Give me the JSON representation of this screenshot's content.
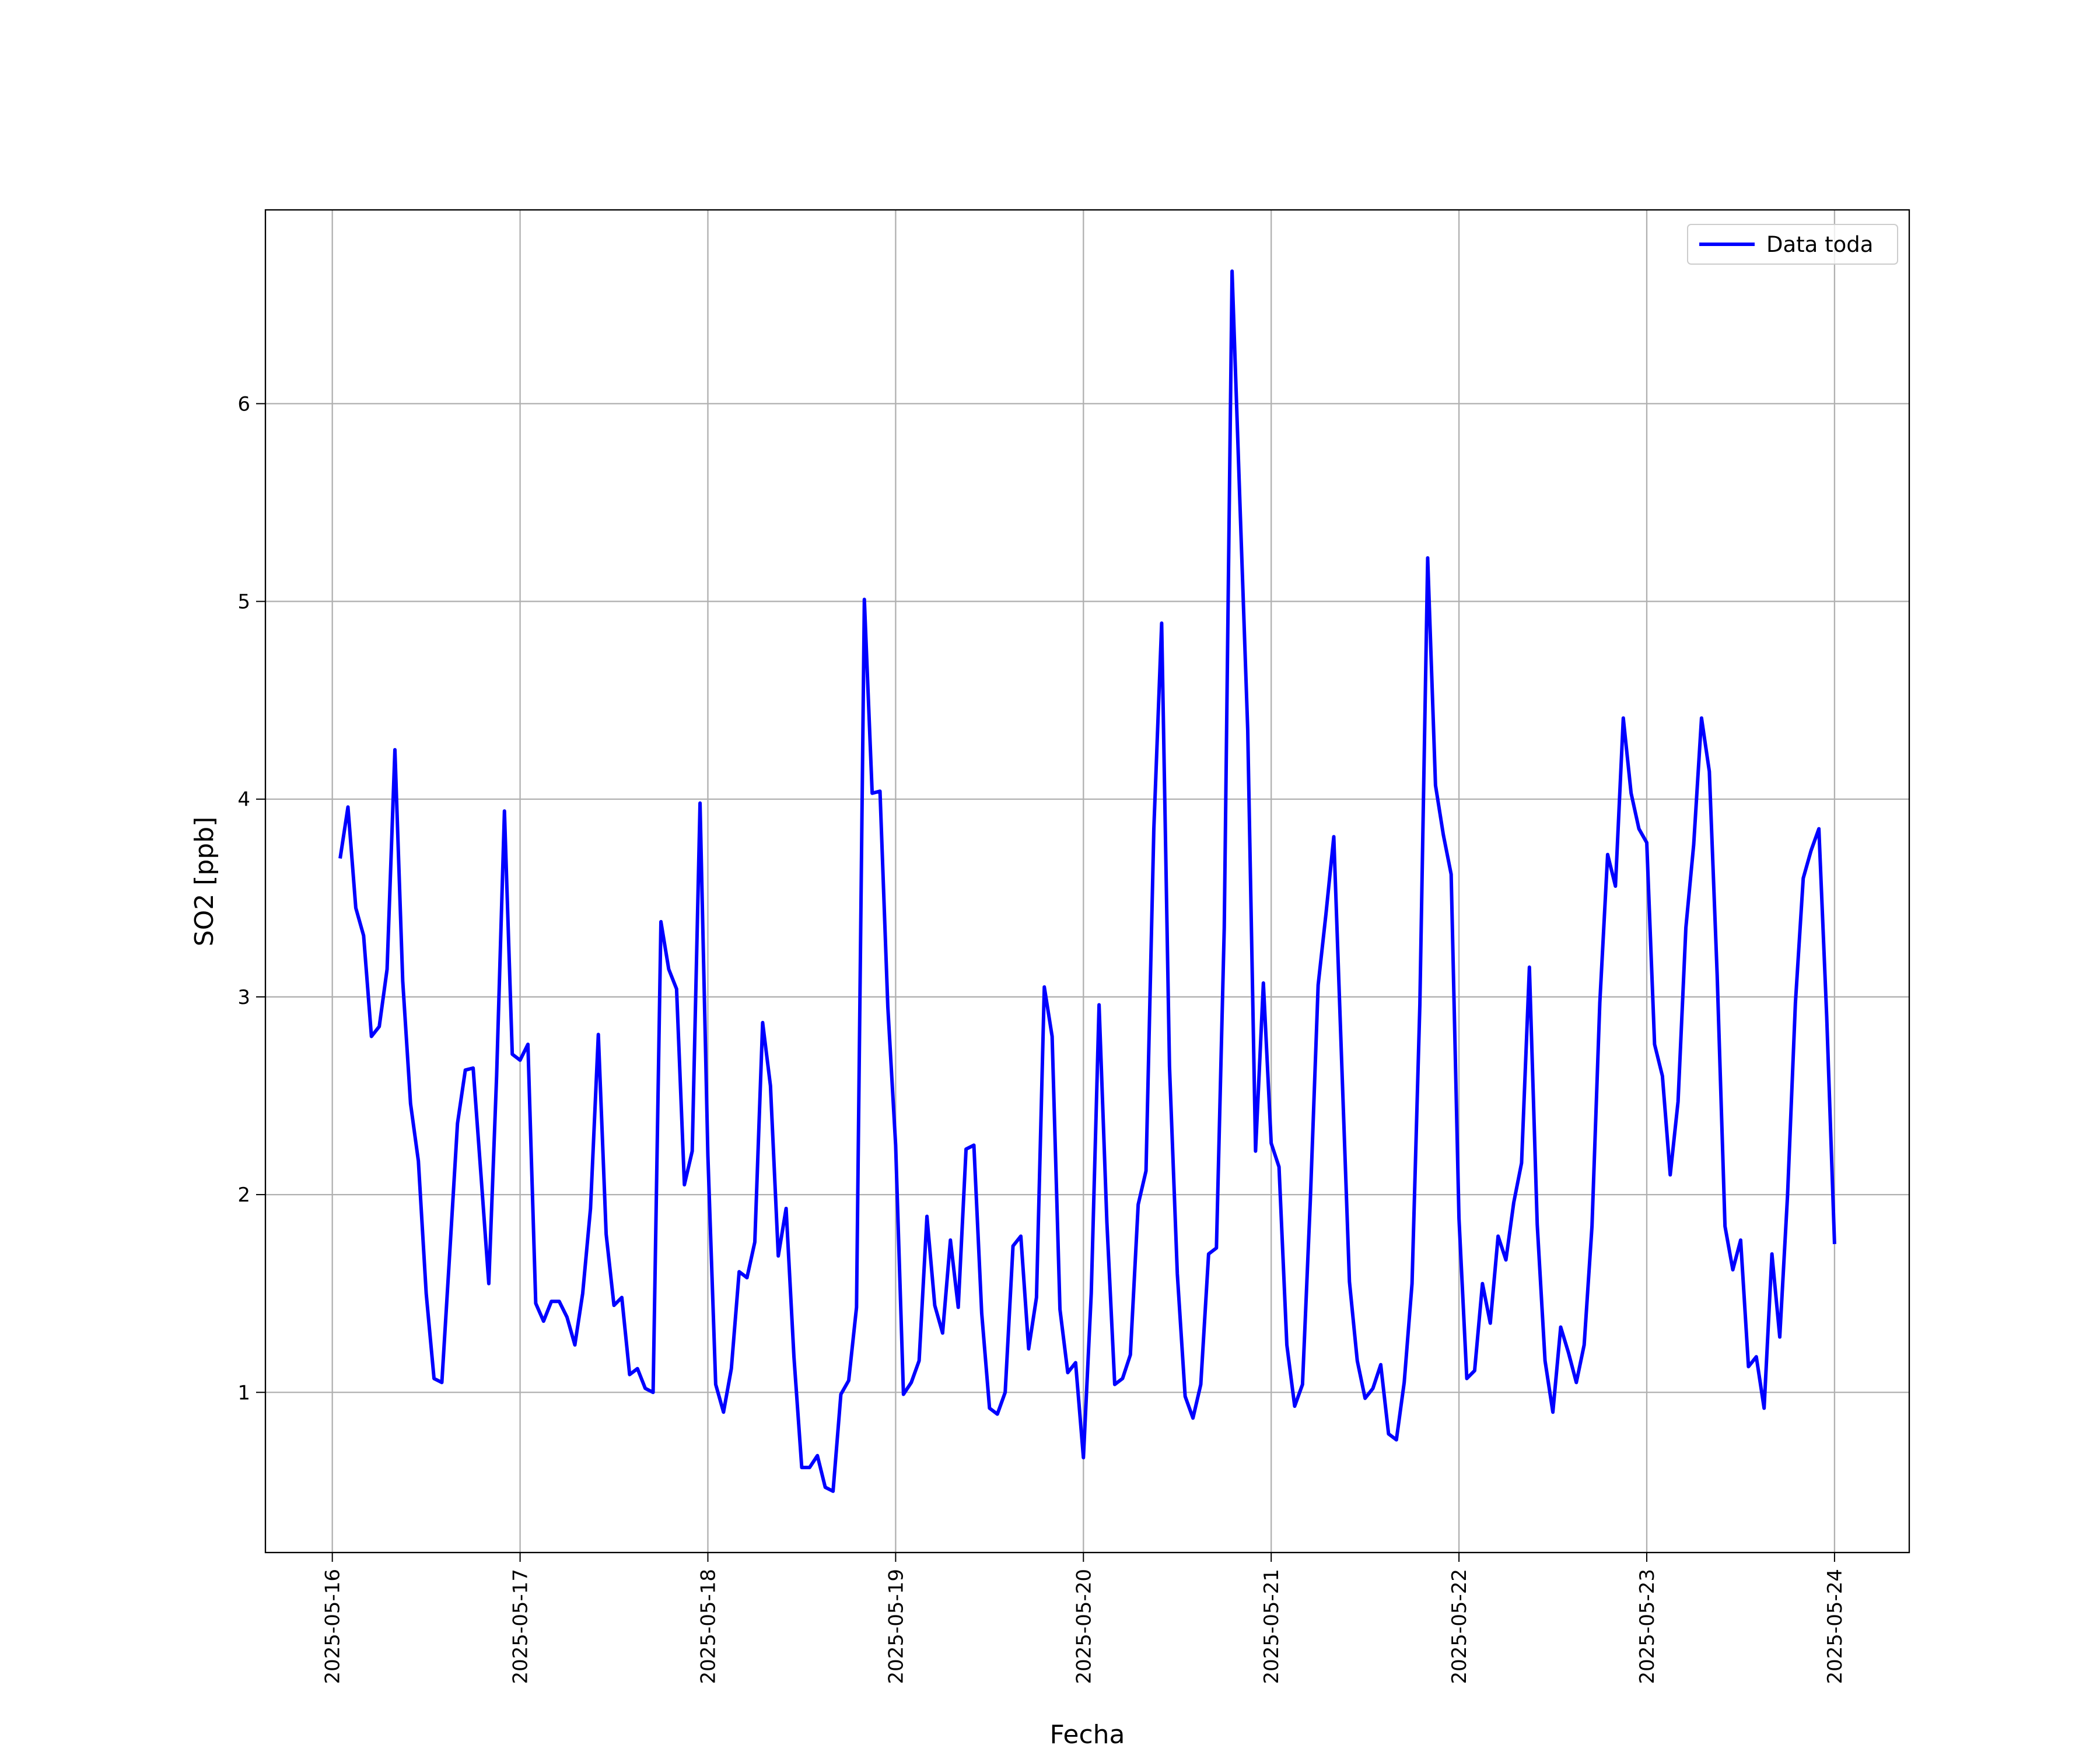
{
  "chart_data": {
    "type": "line",
    "x_label": "Fecha",
    "y_label": "SO2 [ppb]",
    "x": [
      "2025-05-16T01:00",
      "2025-05-16T02:00",
      "2025-05-16T03:00",
      "2025-05-16T04:00",
      "2025-05-16T05:00",
      "2025-05-16T06:00",
      "2025-05-16T07:00",
      "2025-05-16T08:00",
      "2025-05-16T09:00",
      "2025-05-16T10:00",
      "2025-05-16T11:00",
      "2025-05-16T12:00",
      "2025-05-16T13:00",
      "2025-05-16T14:00",
      "2025-05-16T15:00",
      "2025-05-16T16:00",
      "2025-05-16T17:00",
      "2025-05-16T18:00",
      "2025-05-16T19:00",
      "2025-05-16T20:00",
      "2025-05-16T21:00",
      "2025-05-16T22:00",
      "2025-05-16T23:00",
      "2025-05-17T00:00",
      "2025-05-17T01:00",
      "2025-05-17T02:00",
      "2025-05-17T03:00",
      "2025-05-17T04:00",
      "2025-05-17T05:00",
      "2025-05-17T06:00",
      "2025-05-17T07:00",
      "2025-05-17T08:00",
      "2025-05-17T09:00",
      "2025-05-17T10:00",
      "2025-05-17T11:00",
      "2025-05-17T12:00",
      "2025-05-17T13:00",
      "2025-05-17T14:00",
      "2025-05-17T15:00",
      "2025-05-17T16:00",
      "2025-05-17T17:00",
      "2025-05-17T18:00",
      "2025-05-17T19:00",
      "2025-05-17T20:00",
      "2025-05-17T21:00",
      "2025-05-17T22:00",
      "2025-05-17T23:00",
      "2025-05-18T00:00",
      "2025-05-18T01:00",
      "2025-05-18T02:00",
      "2025-05-18T03:00",
      "2025-05-18T04:00",
      "2025-05-18T05:00",
      "2025-05-18T06:00",
      "2025-05-18T07:00",
      "2025-05-18T08:00",
      "2025-05-18T09:00",
      "2025-05-18T10:00",
      "2025-05-18T11:00",
      "2025-05-18T12:00",
      "2025-05-18T13:00",
      "2025-05-18T14:00",
      "2025-05-18T15:00",
      "2025-05-18T16:00",
      "2025-05-18T17:00",
      "2025-05-18T18:00",
      "2025-05-18T19:00",
      "2025-05-18T20:00",
      "2025-05-18T21:00",
      "2025-05-18T22:00",
      "2025-05-18T23:00",
      "2025-05-19T00:00",
      "2025-05-19T01:00",
      "2025-05-19T02:00",
      "2025-05-19T03:00",
      "2025-05-19T04:00",
      "2025-05-19T05:00",
      "2025-05-19T06:00",
      "2025-05-19T07:00",
      "2025-05-19T08:00",
      "2025-05-19T09:00",
      "2025-05-19T10:00",
      "2025-05-19T11:00",
      "2025-05-19T12:00",
      "2025-05-19T13:00",
      "2025-05-19T14:00",
      "2025-05-19T15:00",
      "2025-05-19T16:00",
      "2025-05-19T17:00",
      "2025-05-19T18:00",
      "2025-05-19T19:00",
      "2025-05-19T20:00",
      "2025-05-19T21:00",
      "2025-05-19T22:00",
      "2025-05-19T23:00",
      "2025-05-20T00:00",
      "2025-05-20T01:00",
      "2025-05-20T02:00",
      "2025-05-20T03:00",
      "2025-05-20T04:00",
      "2025-05-20T05:00",
      "2025-05-20T06:00",
      "2025-05-20T07:00",
      "2025-05-20T08:00",
      "2025-05-20T09:00",
      "2025-05-20T10:00",
      "2025-05-20T11:00",
      "2025-05-20T12:00",
      "2025-05-20T13:00",
      "2025-05-20T14:00",
      "2025-05-20T15:00",
      "2025-05-20T16:00",
      "2025-05-20T17:00",
      "2025-05-20T18:00",
      "2025-05-20T19:00",
      "2025-05-20T20:00",
      "2025-05-20T21:00",
      "2025-05-20T22:00",
      "2025-05-20T23:00",
      "2025-05-21T00:00",
      "2025-05-21T01:00",
      "2025-05-21T02:00",
      "2025-05-21T03:00",
      "2025-05-21T04:00",
      "2025-05-21T05:00",
      "2025-05-21T06:00",
      "2025-05-21T07:00",
      "2025-05-21T08:00",
      "2025-05-21T09:00",
      "2025-05-21T10:00",
      "2025-05-21T11:00",
      "2025-05-21T12:00",
      "2025-05-21T13:00",
      "2025-05-21T14:00",
      "2025-05-21T15:00",
      "2025-05-21T16:00",
      "2025-05-21T17:00",
      "2025-05-21T18:00",
      "2025-05-21T19:00",
      "2025-05-21T20:00",
      "2025-05-21T21:00",
      "2025-05-21T22:00",
      "2025-05-21T23:00",
      "2025-05-22T00:00",
      "2025-05-22T01:00",
      "2025-05-22T02:00",
      "2025-05-22T03:00",
      "2025-05-22T04:00",
      "2025-05-22T05:00",
      "2025-05-22T06:00",
      "2025-05-22T07:00",
      "2025-05-22T08:00",
      "2025-05-22T09:00",
      "2025-05-22T10:00",
      "2025-05-22T11:00",
      "2025-05-22T12:00",
      "2025-05-22T13:00",
      "2025-05-22T14:00",
      "2025-05-22T15:00",
      "2025-05-22T16:00",
      "2025-05-22T17:00",
      "2025-05-22T18:00",
      "2025-05-22T19:00",
      "2025-05-22T20:00",
      "2025-05-22T21:00",
      "2025-05-22T22:00",
      "2025-05-22T23:00",
      "2025-05-23T00:00",
      "2025-05-23T01:00",
      "2025-05-23T02:00",
      "2025-05-23T03:00",
      "2025-05-23T04:00",
      "2025-05-23T05:00",
      "2025-05-23T06:00",
      "2025-05-23T07:00",
      "2025-05-23T08:00",
      "2025-05-23T09:00",
      "2025-05-23T10:00",
      "2025-05-23T11:00",
      "2025-05-23T12:00",
      "2025-05-23T13:00",
      "2025-05-23T14:00",
      "2025-05-23T15:00",
      "2025-05-23T16:00",
      "2025-05-23T17:00",
      "2025-05-23T18:00",
      "2025-05-23T19:00",
      "2025-05-23T20:00",
      "2025-05-23T21:00",
      "2025-05-23T22:00",
      "2025-05-23T23:00",
      "2025-05-24T00:00"
    ],
    "series": [
      {
        "name": "Data toda",
        "color": "#0000ff",
        "values": [
          3.7,
          3.96,
          3.45,
          3.31,
          2.8,
          2.85,
          3.14,
          4.25,
          3.08,
          2.46,
          2.17,
          1.5,
          1.07,
          1.05,
          1.7,
          2.36,
          2.63,
          2.64,
          2.1,
          1.55,
          2.6,
          3.94,
          2.71,
          2.68,
          2.76,
          1.45,
          1.36,
          1.46,
          1.46,
          1.38,
          1.24,
          1.5,
          1.93,
          2.81,
          1.8,
          1.44,
          1.48,
          1.09,
          1.12,
          1.02,
          1.0,
          3.38,
          3.14,
          3.04,
          2.05,
          2.22,
          3.98,
          2.2,
          1.04,
          0.9,
          1.12,
          1.61,
          1.58,
          1.76,
          2.87,
          2.55,
          1.69,
          1.93,
          1.18,
          0.62,
          0.62,
          0.68,
          0.52,
          0.5,
          0.99,
          1.06,
          1.43,
          5.01,
          4.03,
          4.04,
          2.95,
          2.25,
          0.99,
          1.05,
          1.16,
          1.89,
          1.44,
          1.3,
          1.77,
          1.43,
          2.23,
          2.25,
          1.4,
          0.92,
          0.89,
          1.0,
          1.74,
          1.79,
          1.22,
          1.48,
          3.05,
          2.8,
          1.42,
          1.1,
          1.15,
          0.67,
          1.5,
          2.96,
          1.86,
          1.04,
          1.07,
          1.19,
          1.95,
          2.12,
          3.85,
          4.89,
          2.65,
          1.6,
          0.98,
          0.87,
          1.04,
          1.7,
          1.73,
          3.35,
          6.67,
          5.5,
          4.35,
          2.22,
          3.07,
          2.26,
          2.14,
          1.24,
          0.93,
          1.04,
          1.97,
          3.06,
          3.42,
          3.81,
          2.68,
          1.56,
          1.16,
          0.97,
          1.02,
          1.14,
          0.79,
          0.76,
          1.05,
          1.55,
          2.96,
          5.22,
          4.07,
          3.82,
          3.62,
          1.88,
          1.07,
          1.11,
          1.55,
          1.35,
          1.79,
          1.67,
          1.96,
          2.16,
          3.15,
          1.85,
          1.16,
          0.9,
          1.33,
          1.2,
          1.05,
          1.24,
          1.84,
          2.97,
          3.72,
          3.56,
          4.41,
          4.03,
          3.85,
          3.78,
          2.76,
          2.6,
          2.1,
          2.47,
          3.35,
          3.77,
          4.41,
          4.14,
          3.11,
          1.84,
          1.62,
          1.77,
          1.13,
          1.18,
          0.92,
          1.7,
          1.28,
          2.0,
          2.97,
          3.6,
          3.74,
          3.85,
          2.9,
          1.75
        ]
      }
    ],
    "xlim": [
      "2025-05-15T15:27",
      "2025-05-24T09:33"
    ],
    "xticks": [
      "2025-05-16",
      "2025-05-17",
      "2025-05-18",
      "2025-05-19",
      "2025-05-20",
      "2025-05-21",
      "2025-05-22",
      "2025-05-23",
      "2025-05-24"
    ],
    "ylim": [
      0.19,
      6.98
    ],
    "yticks": [
      1,
      2,
      3,
      4,
      5,
      6
    ],
    "grid": true,
    "legend": "upper right"
  }
}
